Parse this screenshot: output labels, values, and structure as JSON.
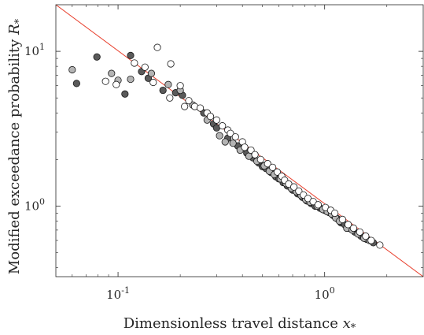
{
  "chart_data": {
    "type": "scatter",
    "title": "",
    "xlabel": "Dimensionless travel distance",
    "xlabel_symbol": "x",
    "xlabel_sub": "*",
    "ylabel": "Modified exceedance probability",
    "ylabel_symbol": "R",
    "ylabel_sub": "*",
    "xscale": "log",
    "yscale": "log",
    "xlim": [
      0.05,
      3.0
    ],
    "ylim": [
      0.35,
      20.0
    ],
    "grid": false,
    "legend": "none",
    "x_ticks": [
      {
        "value": 0.1,
        "base": "10",
        "exp": "-1"
      },
      {
        "value": 1.0,
        "base": "10",
        "exp": "0"
      }
    ],
    "y_ticks": [
      {
        "value": 1.0,
        "base": "10",
        "exp": "0"
      },
      {
        "value": 10.0,
        "base": "10",
        "exp": "1"
      }
    ],
    "fit_line": {
      "x": [
        0.05,
        3.0
      ],
      "y": [
        20.0,
        0.35
      ],
      "color": "#e8402e"
    },
    "colors": {
      "marker_edge": "#1a1a1a",
      "axes": "#262626"
    },
    "series": [
      {
        "fill": "#5a5a5a",
        "points": [
          [
            0.063,
            6.2
          ],
          [
            0.079,
            9.2
          ],
          [
            0.115,
            9.4
          ],
          [
            0.108,
            5.3
          ],
          [
            0.13,
            7.4
          ],
          [
            0.14,
            6.7
          ],
          [
            0.165,
            5.6
          ],
          [
            0.19,
            5.4
          ],
          [
            0.205,
            5.2
          ],
          [
            0.26,
            4.0
          ],
          [
            0.29,
            3.4
          ],
          [
            0.3,
            3.2
          ],
          [
            0.34,
            2.75
          ],
          [
            0.38,
            2.45
          ],
          [
            0.42,
            2.2
          ],
          [
            0.45,
            2.05
          ],
          [
            0.48,
            1.9
          ],
          [
            0.5,
            1.8
          ],
          [
            0.52,
            1.75
          ],
          [
            0.55,
            1.65
          ],
          [
            0.58,
            1.55
          ],
          [
            0.6,
            1.5
          ],
          [
            0.63,
            1.42
          ],
          [
            0.66,
            1.35
          ],
          [
            0.7,
            1.27
          ],
          [
            0.74,
            1.2
          ],
          [
            0.78,
            1.14
          ],
          [
            0.82,
            1.08
          ],
          [
            0.86,
            1.04
          ],
          [
            0.9,
            1.0
          ],
          [
            0.95,
            0.97
          ],
          [
            1.0,
            0.94
          ],
          [
            1.05,
            0.91
          ],
          [
            1.1,
            0.87
          ],
          [
            1.15,
            0.83
          ],
          [
            1.2,
            0.78
          ],
          [
            1.25,
            0.76
          ],
          [
            1.32,
            0.72
          ],
          [
            1.4,
            0.68
          ],
          [
            1.5,
            0.64
          ],
          [
            1.6,
            0.61
          ],
          [
            1.72,
            0.58
          ]
        ]
      },
      {
        "fill": "#b4b4b4",
        "points": [
          [
            0.06,
            7.6
          ],
          [
            0.093,
            7.2
          ],
          [
            0.1,
            6.5
          ],
          [
            0.115,
            6.6
          ],
          [
            0.145,
            7.2
          ],
          [
            0.175,
            6.1
          ],
          [
            0.2,
            5.6
          ],
          [
            0.23,
            4.5
          ],
          [
            0.27,
            3.6
          ],
          [
            0.31,
            2.85
          ],
          [
            0.33,
            2.6
          ],
          [
            0.36,
            2.55
          ],
          [
            0.39,
            2.3
          ],
          [
            0.43,
            2.1
          ],
          [
            0.47,
            1.95
          ],
          [
            0.51,
            1.82
          ],
          [
            0.54,
            1.68
          ],
          [
            0.57,
            1.6
          ],
          [
            0.61,
            1.5
          ],
          [
            0.65,
            1.4
          ],
          [
            0.69,
            1.3
          ],
          [
            0.73,
            1.24
          ],
          [
            0.77,
            1.17
          ],
          [
            0.81,
            1.1
          ],
          [
            0.85,
            1.06
          ],
          [
            0.92,
            1.0
          ],
          [
            0.98,
            0.95
          ],
          [
            1.03,
            0.92
          ],
          [
            1.08,
            0.89
          ],
          [
            1.13,
            0.84
          ],
          [
            1.18,
            0.8
          ],
          [
            1.28,
            0.72
          ],
          [
            1.36,
            0.7
          ],
          [
            1.45,
            0.66
          ],
          [
            1.55,
            0.62
          ],
          [
            1.65,
            0.6
          ]
        ]
      },
      {
        "fill": "#ffffff",
        "points": [
          [
            0.087,
            6.4
          ],
          [
            0.098,
            6.1
          ],
          [
            0.12,
            8.4
          ],
          [
            0.135,
            7.9
          ],
          [
            0.148,
            6.3
          ],
          [
            0.155,
            10.6
          ],
          [
            0.18,
            8.3
          ],
          [
            0.178,
            5.0
          ],
          [
            0.2,
            6.0
          ],
          [
            0.21,
            4.4
          ],
          [
            0.22,
            4.8
          ],
          [
            0.235,
            4.4
          ],
          [
            0.25,
            4.3
          ],
          [
            0.27,
            4.0
          ],
          [
            0.28,
            3.8
          ],
          [
            0.3,
            3.6
          ],
          [
            0.32,
            3.3
          ],
          [
            0.34,
            3.1
          ],
          [
            0.35,
            2.95
          ],
          [
            0.37,
            2.8
          ],
          [
            0.4,
            2.6
          ],
          [
            0.41,
            2.4
          ],
          [
            0.44,
            2.3
          ],
          [
            0.46,
            2.15
          ],
          [
            0.49,
            2.0
          ],
          [
            0.53,
            1.88
          ],
          [
            0.56,
            1.78
          ],
          [
            0.59,
            1.66
          ],
          [
            0.62,
            1.56
          ],
          [
            0.64,
            1.47
          ],
          [
            0.67,
            1.39
          ],
          [
            0.71,
            1.33
          ],
          [
            0.75,
            1.25
          ],
          [
            0.79,
            1.18
          ],
          [
            0.83,
            1.12
          ],
          [
            0.88,
            1.07
          ],
          [
            0.93,
            1.02
          ],
          [
            1.01,
            0.98
          ],
          [
            1.07,
            0.94
          ],
          [
            1.12,
            0.9
          ],
          [
            1.22,
            0.82
          ],
          [
            1.3,
            0.76
          ],
          [
            1.38,
            0.72
          ],
          [
            1.48,
            0.68
          ],
          [
            1.58,
            0.64
          ],
          [
            1.68,
            0.6
          ],
          [
            1.85,
            0.56
          ]
        ]
      }
    ]
  }
}
